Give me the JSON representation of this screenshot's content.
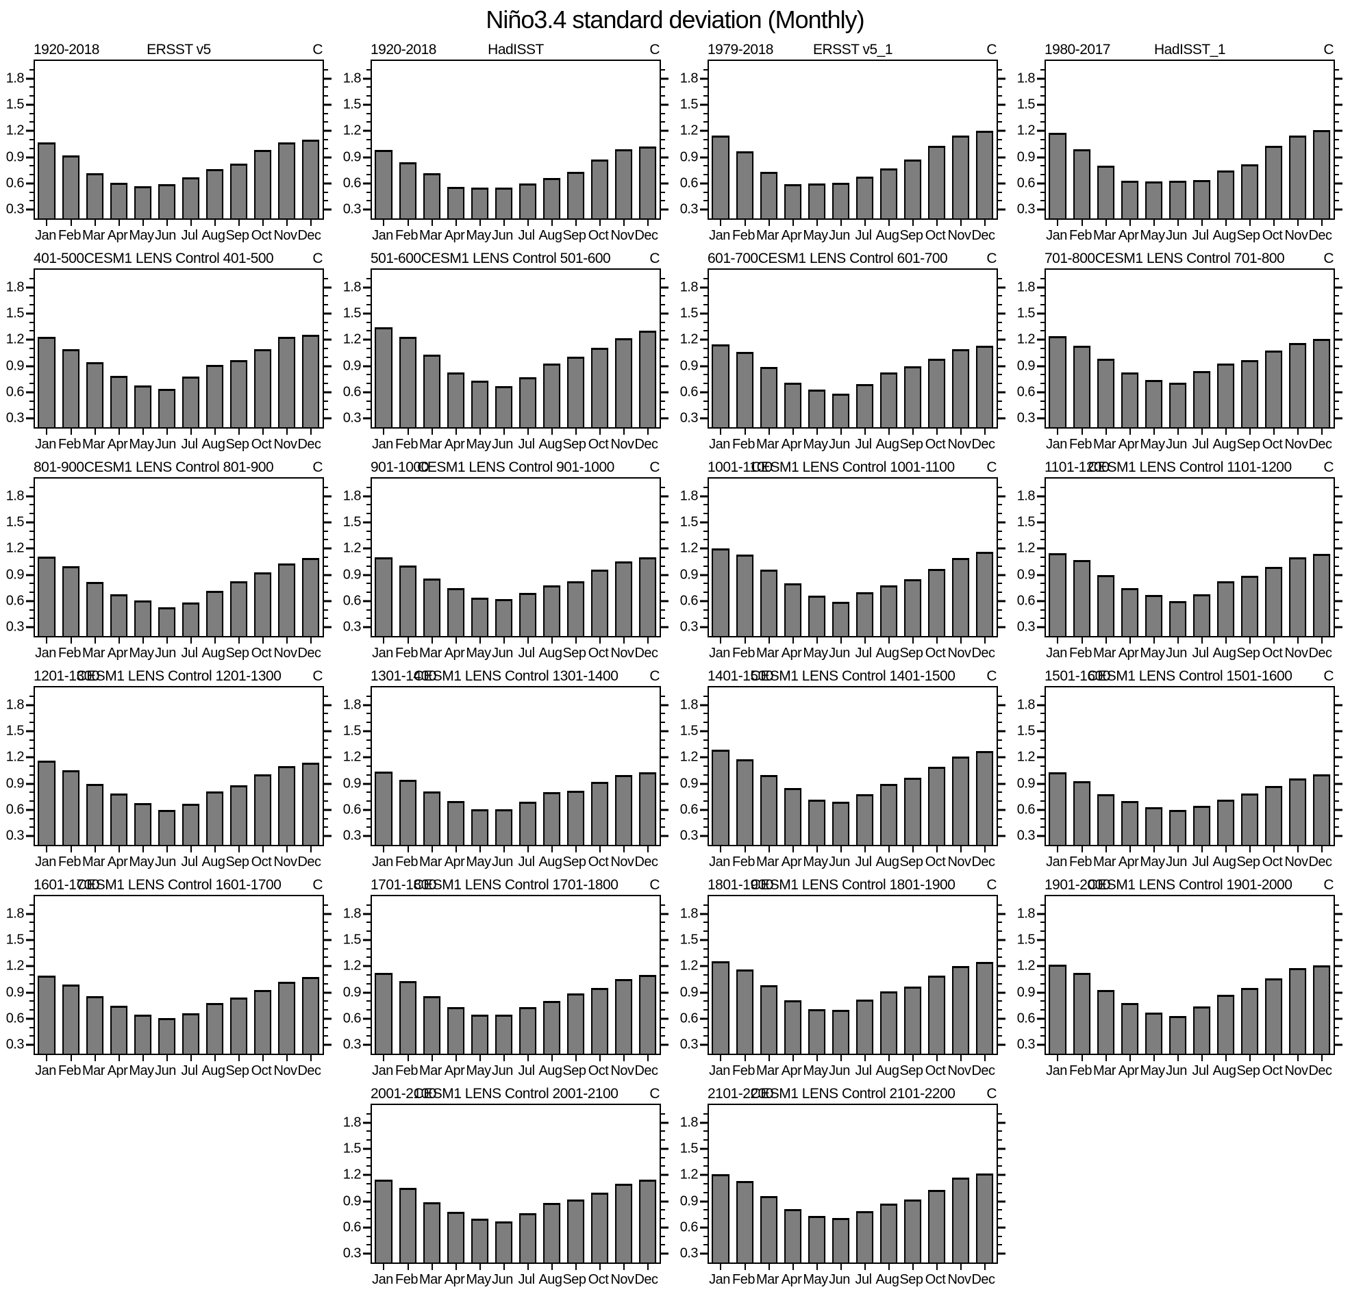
{
  "page_title": "Niño3.4 standard deviation (Monthly)",
  "chart_data": {
    "type": "bar",
    "title": "Niño3.4 standard deviation (Monthly)",
    "categories": [
      "Jan",
      "Feb",
      "Mar",
      "Apr",
      "May",
      "Jun",
      "Jul",
      "Aug",
      "Sep",
      "Oct",
      "Nov",
      "Dec"
    ],
    "ylim": [
      0.2,
      2.0
    ],
    "ytick_values": [
      0.3,
      0.6,
      0.9,
      1.2,
      1.5,
      1.8
    ],
    "ytick_labels": [
      "0.3",
      "0.6",
      "0.9",
      "1.2",
      "1.5",
      "1.8"
    ],
    "minor_tick_step": 0.1,
    "grid": false,
    "bar_fill_color": "#7e7e7e",
    "axis_color": "#000000",
    "panels": [
      {
        "left_label": "1920-2018",
        "title": "ERSST v5",
        "corner_label": "C",
        "values": [
          1.07,
          0.92,
          0.72,
          0.61,
          0.57,
          0.59,
          0.67,
          0.76,
          0.83,
          0.98,
          1.07,
          1.1
        ]
      },
      {
        "left_label": "1920-2018",
        "title": "HadISST",
        "corner_label": "C",
        "values": [
          0.98,
          0.84,
          0.72,
          0.56,
          0.55,
          0.55,
          0.6,
          0.66,
          0.73,
          0.87,
          0.99,
          1.02
        ]
      },
      {
        "left_label": "1979-2018",
        "title": "ERSST v5_1",
        "corner_label": "C",
        "values": [
          1.15,
          0.97,
          0.73,
          0.59,
          0.6,
          0.61,
          0.68,
          0.77,
          0.87,
          1.03,
          1.15,
          1.2
        ]
      },
      {
        "left_label": "1980-2017",
        "title": "HadISST_1",
        "corner_label": "C",
        "values": [
          1.18,
          0.99,
          0.8,
          0.63,
          0.62,
          0.63,
          0.64,
          0.75,
          0.82,
          1.03,
          1.15,
          1.21
        ]
      },
      {
        "left_label": "401-500",
        "title": "CESM1 LENS Control 401-500",
        "corner_label": "C",
        "values": [
          1.23,
          1.09,
          0.94,
          0.79,
          0.68,
          0.64,
          0.78,
          0.91,
          0.97,
          1.09,
          1.23,
          1.26
        ]
      },
      {
        "left_label": "501-600",
        "title": "CESM1 LENS Control 501-600",
        "corner_label": "C",
        "values": [
          1.34,
          1.23,
          1.03,
          0.83,
          0.73,
          0.67,
          0.77,
          0.93,
          1.01,
          1.11,
          1.22,
          1.3
        ]
      },
      {
        "left_label": "601-700",
        "title": "CESM1 LENS Control 601-700",
        "corner_label": "C",
        "values": [
          1.15,
          1.06,
          0.89,
          0.71,
          0.63,
          0.58,
          0.69,
          0.83,
          0.9,
          0.98,
          1.09,
          1.13
        ]
      },
      {
        "left_label": "701-800",
        "title": "CESM1 LENS Control 701-800",
        "corner_label": "C",
        "values": [
          1.24,
          1.13,
          0.98,
          0.83,
          0.74,
          0.71,
          0.84,
          0.93,
          0.97,
          1.08,
          1.16,
          1.21
        ]
      },
      {
        "left_label": "801-900",
        "title": "CESM1 LENS Control 801-900",
        "corner_label": "C",
        "values": [
          1.11,
          1.0,
          0.82,
          0.68,
          0.61,
          0.53,
          0.58,
          0.72,
          0.83,
          0.93,
          1.03,
          1.09
        ]
      },
      {
        "left_label": "901-1000",
        "title": "CESM1 LENS Control 901-1000",
        "corner_label": "C",
        "values": [
          1.1,
          1.01,
          0.86,
          0.75,
          0.64,
          0.62,
          0.69,
          0.78,
          0.83,
          0.96,
          1.05,
          1.1
        ]
      },
      {
        "left_label": "1001-1100",
        "title": "CESM1 LENS Control 1001-1100",
        "corner_label": "C",
        "values": [
          1.2,
          1.13,
          0.96,
          0.8,
          0.66,
          0.59,
          0.7,
          0.78,
          0.85,
          0.97,
          1.09,
          1.16
        ]
      },
      {
        "left_label": "1101-1200",
        "title": "CESM1 LENS Control 1101-1200",
        "corner_label": "C",
        "values": [
          1.15,
          1.07,
          0.9,
          0.75,
          0.67,
          0.6,
          0.68,
          0.83,
          0.89,
          0.99,
          1.1,
          1.14
        ]
      },
      {
        "left_label": "1201-1300",
        "title": "CESM1 LENS Control 1201-1300",
        "corner_label": "C",
        "values": [
          1.16,
          1.05,
          0.9,
          0.79,
          0.68,
          0.6,
          0.67,
          0.81,
          0.88,
          1.01,
          1.1,
          1.14
        ]
      },
      {
        "left_label": "1301-1400",
        "title": "CESM1 LENS Control 1301-1400",
        "corner_label": "C",
        "values": [
          1.04,
          0.94,
          0.81,
          0.7,
          0.61,
          0.61,
          0.69,
          0.8,
          0.82,
          0.92,
          1.0,
          1.03
        ]
      },
      {
        "left_label": "1401-1500",
        "title": "CESM1 LENS Control 1401-1500",
        "corner_label": "C",
        "values": [
          1.29,
          1.18,
          1.0,
          0.85,
          0.72,
          0.69,
          0.78,
          0.9,
          0.97,
          1.09,
          1.21,
          1.27
        ]
      },
      {
        "left_label": "1501-1600",
        "title": "CESM1 LENS Control 1501-1600",
        "corner_label": "C",
        "values": [
          1.03,
          0.93,
          0.78,
          0.7,
          0.63,
          0.6,
          0.65,
          0.72,
          0.79,
          0.87,
          0.96,
          1.01
        ]
      },
      {
        "left_label": "1601-1700",
        "title": "CESM1 LENS Control 1601-1700",
        "corner_label": "C",
        "values": [
          1.09,
          0.99,
          0.86,
          0.75,
          0.65,
          0.61,
          0.66,
          0.78,
          0.84,
          0.93,
          1.02,
          1.08
        ]
      },
      {
        "left_label": "1701-1800",
        "title": "CESM1 LENS Control 1701-1800",
        "corner_label": "C",
        "values": [
          1.12,
          1.03,
          0.86,
          0.73,
          0.65,
          0.65,
          0.73,
          0.8,
          0.89,
          0.95,
          1.05,
          1.1
        ]
      },
      {
        "left_label": "1801-1900",
        "title": "CESM1 LENS Control 1801-1900",
        "corner_label": "C",
        "values": [
          1.26,
          1.16,
          0.98,
          0.81,
          0.71,
          0.7,
          0.82,
          0.91,
          0.97,
          1.09,
          1.2,
          1.25
        ]
      },
      {
        "left_label": "1901-2000",
        "title": "CESM1 LENS Control 1901-2000",
        "corner_label": "C",
        "values": [
          1.22,
          1.12,
          0.93,
          0.78,
          0.67,
          0.63,
          0.74,
          0.87,
          0.95,
          1.06,
          1.18,
          1.21
        ]
      },
      {
        "left_label": "2001-2100",
        "title": "CESM1 LENS Control 2001-2100",
        "corner_label": "C",
        "values": [
          1.15,
          1.05,
          0.89,
          0.78,
          0.7,
          0.67,
          0.76,
          0.88,
          0.92,
          1.0,
          1.1,
          1.15
        ]
      },
      {
        "left_label": "2101-2200",
        "title": "CESM1 LENS Control 2101-2200",
        "corner_label": "C",
        "values": [
          1.21,
          1.13,
          0.96,
          0.81,
          0.73,
          0.71,
          0.79,
          0.87,
          0.92,
          1.03,
          1.17,
          1.22
        ]
      }
    ]
  }
}
